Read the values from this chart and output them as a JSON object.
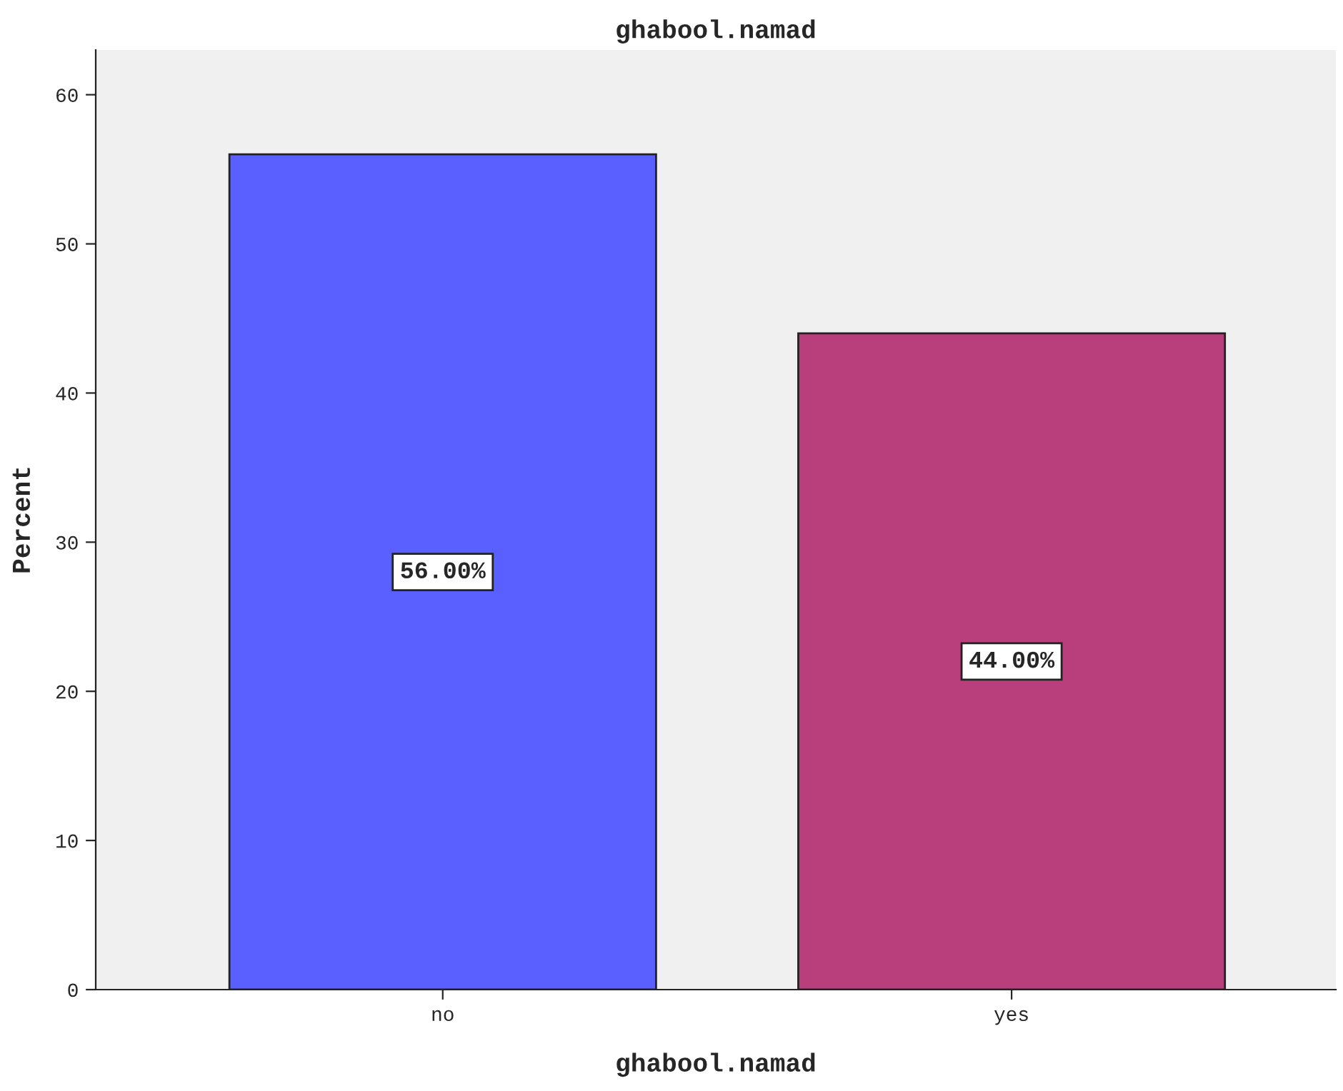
{
  "chart_data": {
    "type": "bar",
    "title": "ghabool.namad",
    "xlabel": "ghabool.namad",
    "ylabel": "Percent",
    "categories": [
      "no",
      "yes"
    ],
    "values": [
      56,
      44
    ],
    "colors": [
      "#5a5fff",
      "#b83e7c"
    ],
    "value_labels": [
      "56.00%",
      "44.00%"
    ],
    "ylim": [
      0,
      63
    ],
    "yticks": [
      0,
      10,
      20,
      30,
      40,
      50,
      60
    ],
    "grid": false,
    "legend": false
  }
}
